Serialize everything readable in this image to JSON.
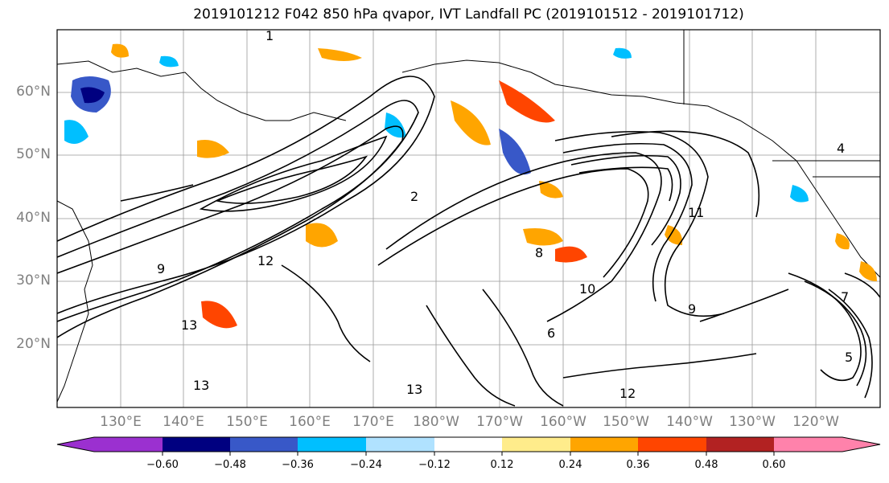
{
  "title": "2019101212 F042 850 hPa qvapor, IVT Landfall PC (2019101512 - 2019101712)",
  "lat_labels": [
    "60°N",
    "50°N",
    "40°N",
    "30°N",
    "20°N"
  ],
  "lon_labels": [
    "130°E",
    "140°E",
    "150°E",
    "160°E",
    "170°E",
    "180°W",
    "170°W",
    "160°W",
    "150°W",
    "140°W",
    "130°W",
    "120°W"
  ],
  "colorbar": {
    "ticks": [
      "−0.60",
      "−0.48",
      "−0.36",
      "−0.24",
      "−0.12",
      "0.12",
      "0.24",
      "0.36",
      "0.48",
      "0.60"
    ],
    "colors": [
      "#9b30d0",
      "#000080",
      "#3858c8",
      "#00bfff",
      "#b0e2ff",
      "#ffffff",
      "#ffec8b",
      "#ffa500",
      "#ff4500",
      "#b22222",
      "#ff82ab"
    ]
  },
  "contour_labels": [
    "1",
    "2",
    "9",
    "12",
    "13",
    "10",
    "8",
    "9",
    "11",
    "13",
    "5",
    "4",
    "12",
    "13",
    "6",
    "7"
  ]
}
